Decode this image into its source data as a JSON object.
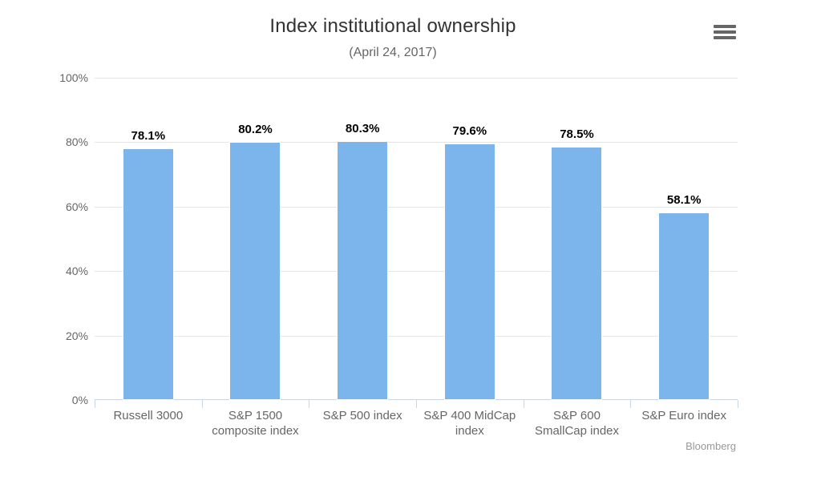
{
  "chart_data": {
    "type": "bar",
    "title": "Index institutional ownership",
    "subtitle": "(April 24, 2017)",
    "categories": [
      "Russell 3000",
      "S&P 1500 composite index",
      "S&P 500 index",
      "S&P 400 MidCap index",
      "S&P 600 SmallCap index",
      "S&P Euro index"
    ],
    "category_label_lines": [
      [
        "Russell 3000"
      ],
      [
        "S&P 1500",
        "composite index"
      ],
      [
        "S&P 500 index"
      ],
      [
        "S&P 400 MidCap",
        "index"
      ],
      [
        "S&P 600",
        "SmallCap index"
      ],
      [
        "S&P Euro index"
      ]
    ],
    "values": [
      78.1,
      80.2,
      80.3,
      79.6,
      78.5,
      58.1
    ],
    "data_labels": [
      "78.1%",
      "80.2%",
      "80.3%",
      "79.6%",
      "78.5%",
      "58.1%"
    ],
    "xlabel": "",
    "ylabel": "",
    "ylim": [
      0,
      100
    ],
    "yticks": [
      0,
      20,
      40,
      60,
      80,
      100
    ],
    "ytick_labels": [
      "0%",
      "20%",
      "40%",
      "60%",
      "80%",
      "100%"
    ],
    "grid": true,
    "legend": "none",
    "credit": "Bloomberg",
    "colors": {
      "bar": "#7cb5ec",
      "grid": "#e6e6e6",
      "axis_line": "#ccd6eb",
      "title": "#333333",
      "subtitle": "#666666",
      "tick_label": "#666666",
      "data_label": "#000000",
      "credit": "#999999",
      "menu_icon": "#666666"
    }
  },
  "menu": {
    "icon": "hamburger-icon"
  }
}
